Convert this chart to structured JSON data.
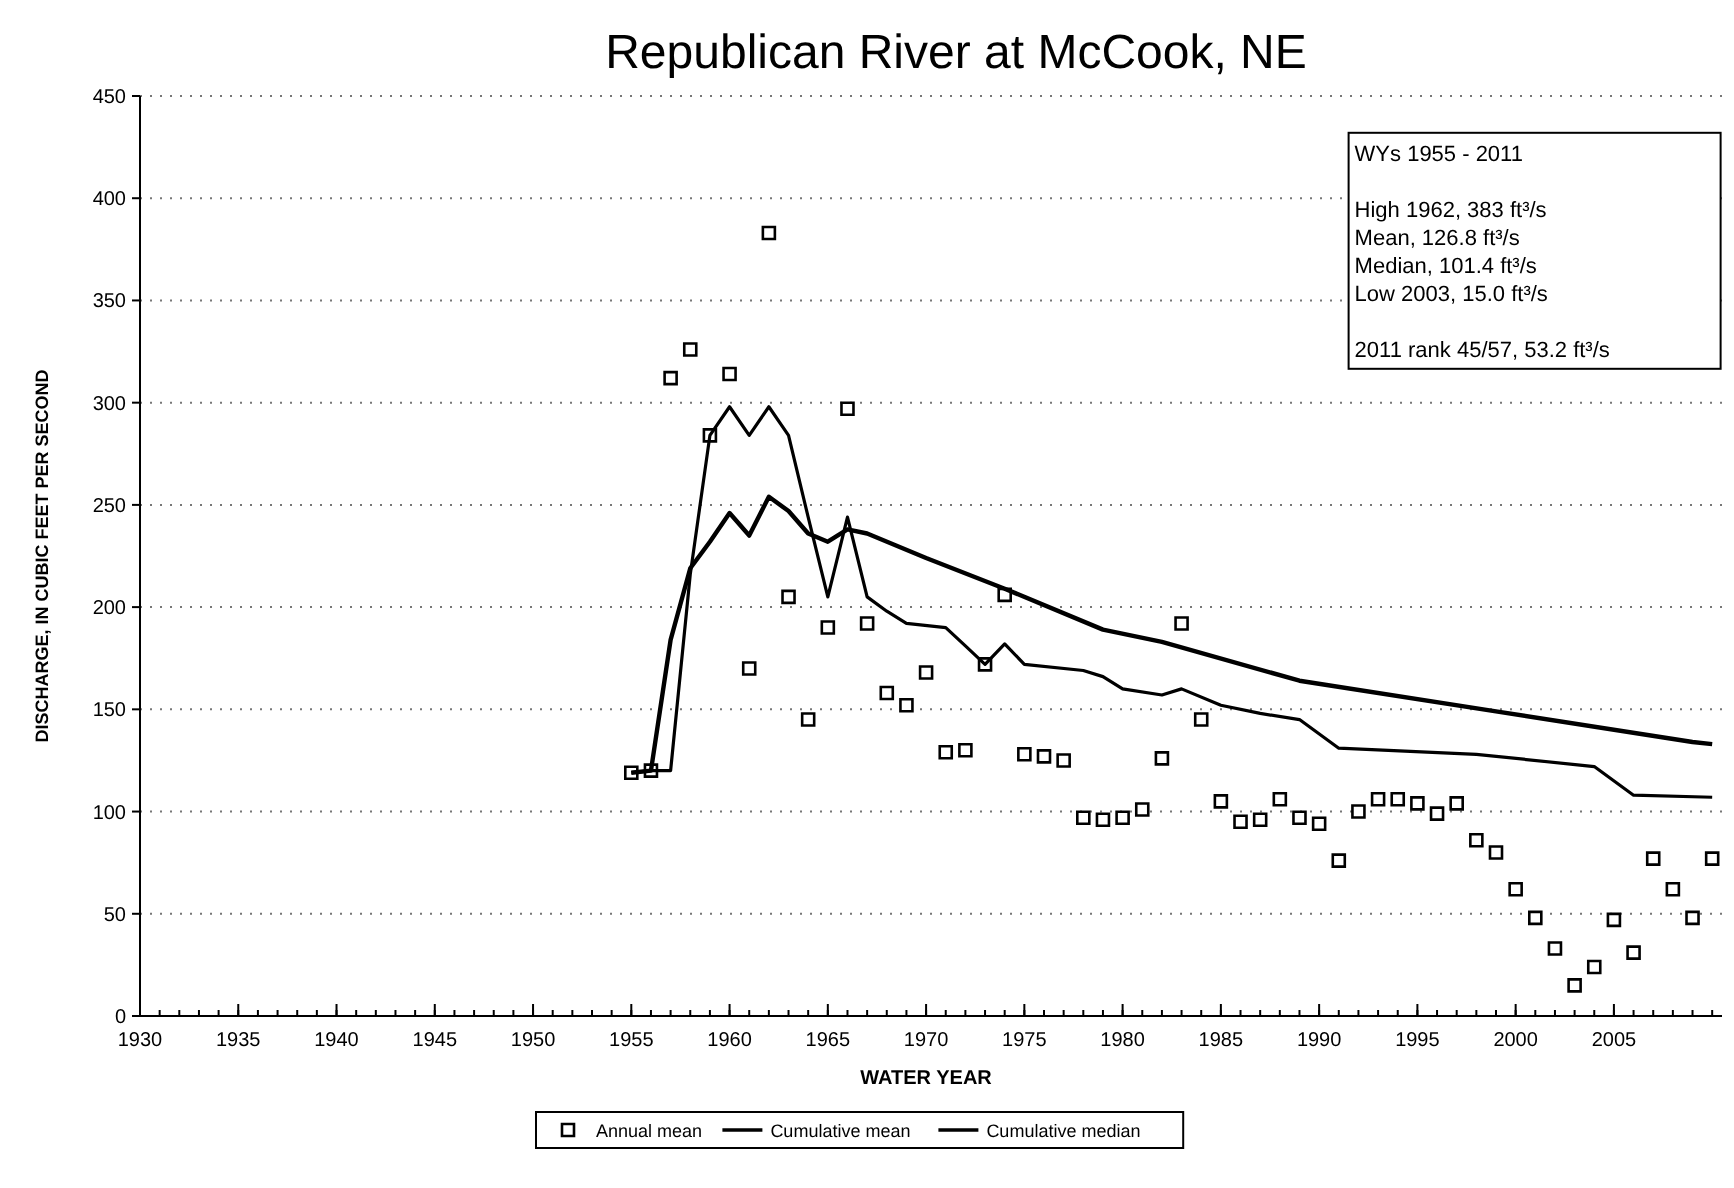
{
  "chart_data": {
    "type": "scatter",
    "title": "Republican River at McCook, NE",
    "xlabel": "WATER YEAR",
    "ylabel": "DISCHARGE, IN CUBIC FEET PER SECOND",
    "annotations": [
      "WYs 1955 - 2011",
      "High 1962, 383 ft³/s",
      "Mean, 126.8 ft³/s",
      "Median, 101.4 ft³/s",
      "Low 2003, 15.0 ft³/s",
      "2011 rank 45/57, 53.2 ft³/s"
    ],
    "xlim": [
      1930,
      2010.5
    ],
    "ylim": [
      0,
      450
    ],
    "xticks": [
      1930,
      1935,
      1940,
      1945,
      1950,
      1955,
      1960,
      1965,
      1970,
      1975,
      1980,
      1985,
      1990,
      1995,
      2000,
      2005
    ],
    "yticks": [
      0,
      50,
      100,
      150,
      200,
      250,
      300,
      350,
      400,
      450
    ],
    "grid": "y",
    "legend": "bottom",
    "series": [
      {
        "name": "Annual mean",
        "type": "scatter",
        "marker": "square",
        "color": "#000000",
        "x": [
          1955,
          1956,
          1957,
          1958,
          1959,
          1960,
          1961,
          1962,
          1963,
          1964,
          1965,
          1966,
          1967,
          1968,
          1969,
          1970,
          1971,
          1972,
          1973,
          1974,
          1975,
          1976,
          1977,
          1978,
          1979,
          1980,
          1981,
          1982,
          1983,
          1984,
          1985,
          1986,
          1987,
          1988,
          1989,
          1990,
          1991,
          1992,
          1993,
          1994,
          1995,
          1996,
          1997,
          1998,
          1999,
          2000,
          2001,
          2002,
          2003,
          2004,
          2005,
          2006,
          2007,
          2008,
          2009,
          2010
        ],
        "values": [
          119,
          120,
          312,
          326,
          284,
          314,
          170,
          383,
          205,
          145,
          190,
          297,
          192,
          158,
          152,
          168,
          129,
          130,
          172,
          206,
          128,
          127,
          125,
          97,
          96,
          97,
          101,
          126,
          192,
          145,
          105,
          95,
          96,
          106,
          97,
          94,
          76,
          100,
          106,
          106,
          104,
          99,
          104,
          86,
          80,
          62,
          48,
          33,
          15,
          24,
          47,
          31,
          77,
          62,
          48,
          77
        ]
      },
      {
        "name": "Cumulative mean",
        "type": "line",
        "marker": "none",
        "line_style": "solid",
        "color": "#000000",
        "x": [
          1955,
          1956,
          1957,
          1958,
          1959,
          1960,
          1961,
          1962,
          1963,
          1964,
          1965,
          1966,
          1967,
          1970,
          1974,
          1979,
          1982,
          1989,
          1999,
          2009,
          2010
        ],
        "values": [
          119,
          120,
          184,
          219,
          232,
          246,
          235,
          254,
          247,
          236,
          232,
          238,
          236,
          224,
          209,
          189,
          183,
          164,
          149,
          134,
          133
        ]
      },
      {
        "name": "Cumulative median",
        "type": "line",
        "marker": "none",
        "line_style": "solid",
        "color": "#000000",
        "x": [
          1955,
          1956,
          1957,
          1958,
          1959,
          1960,
          1961,
          1962,
          1963,
          1964,
          1965,
          1966,
          1967,
          1968,
          1969,
          1971,
          1972,
          1973,
          1974,
          1975,
          1978,
          1979,
          1980,
          1982,
          1983,
          1985,
          1987,
          1989,
          1991,
          1998,
          2004,
          2006,
          2010
        ],
        "values": [
          119,
          120,
          120,
          216,
          284,
          298,
          284,
          298,
          284,
          244,
          205,
          244,
          205,
          198,
          192,
          190,
          181,
          172,
          182,
          172,
          169,
          166,
          160,
          157,
          160,
          152,
          148,
          145,
          131,
          128,
          122,
          108,
          107
        ]
      }
    ]
  }
}
